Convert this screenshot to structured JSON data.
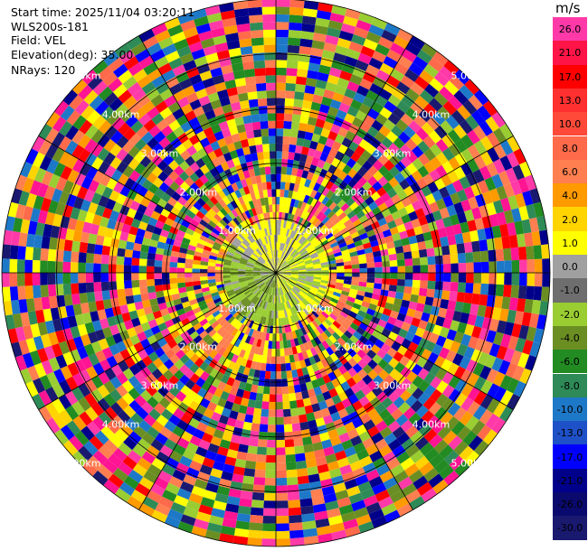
{
  "info": {
    "start_time": "Start time: 2025/11/04 03:20:11",
    "instrument": "WLS200s-181",
    "field": "Field: VEL",
    "elevation": "Elevation(deg): 35.00",
    "nrays": "NRays: 120"
  },
  "chart_data": {
    "type": "heatmap",
    "projection": "polar-ppi",
    "field": "VEL",
    "units": "m/s",
    "elevation_deg": 35.0,
    "nrays": 120,
    "range_rings_km": [
      1.0,
      2.0,
      3.0,
      4.0,
      5.0
    ],
    "range_ring_labels": [
      "1.00km",
      "2.00km",
      "3.00km",
      "4.00km",
      "5.00km"
    ],
    "colorbar": {
      "title": "m/s",
      "tick_labels": [
        "26.0",
        "21.0",
        "17.0",
        "13.0",
        "10.0",
        "8.0",
        "6.0",
        "4.0",
        "2.0",
        "1.0",
        "0.0",
        "-1.0",
        "-2.0",
        "-4.0",
        "-6.0",
        "-8.0",
        "-10.0",
        "-13.0",
        "-17.0",
        "-21.0",
        "-26.0",
        "-30.0"
      ],
      "colors": [
        "#ff3aa8",
        "#ff1447",
        "#ff0000",
        "#ff3030",
        "#ff4a3a",
        "#ff6a4a",
        "#ff7f50",
        "#ff9a00",
        "#ffd400",
        "#ffff00",
        "#a0a0a0",
        "#6e6e6e",
        "#9acd32",
        "#6b8e23",
        "#228b22",
        "#2e8b57",
        "#1e78c8",
        "#1e50c8",
        "#0000ff",
        "#00008b",
        "#0a0a6e",
        "#191970"
      ]
    },
    "near_field": {
      "within_km": 1.0,
      "description_colors": [
        "#9acd32",
        "#a0a0a0",
        "#ffff00",
        "#6b8e23"
      ]
    },
    "far_field_palette": [
      "#ff1493",
      "#ff3aa8",
      "#ff0000",
      "#ffff00",
      "#0000ff",
      "#00008b",
      "#191970",
      "#ff6a4a",
      "#ff7f50",
      "#ffd400",
      "#9acd32",
      "#6b8e23",
      "#228b22",
      "#1e78c8",
      "#2e8b57",
      "#ff9a00"
    ]
  }
}
